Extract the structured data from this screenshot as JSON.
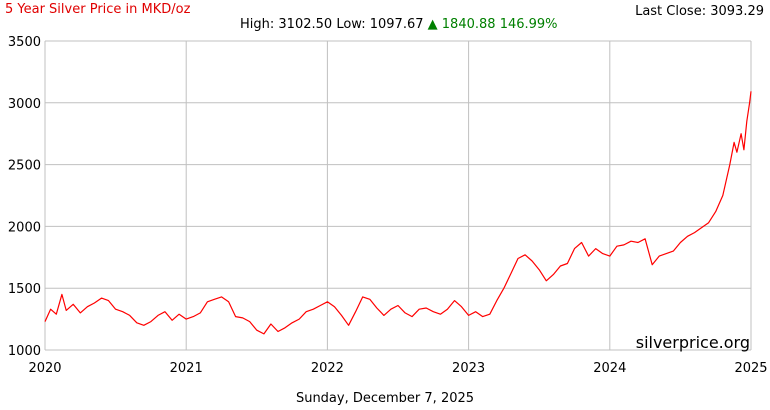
{
  "header": {
    "title": "5 Year Silver Price in MKD/oz",
    "last_close_label": "Last Close:",
    "last_close_value": "3093.29",
    "high_label": "High:",
    "high_value": "3102.50",
    "low_label": "Low:",
    "low_value": "1097.67",
    "change_arrow": "▲",
    "change_value": "1840.88",
    "change_percent": "146.99%"
  },
  "footer": {
    "date": "Sunday, December 7, 2025"
  },
  "watermark": "silverprice.org",
  "colors": {
    "title": "#e00000",
    "line": "#ff0000",
    "change_up": "#008000",
    "grid": "#c0c0c0"
  },
  "chart_data": {
    "type": "line",
    "title": "5 Year Silver Price in MKD/oz",
    "xlabel": "",
    "ylabel": "",
    "xlim": [
      2020.0,
      2025.0
    ],
    "ylim": [
      1000,
      3500
    ],
    "x_ticks": [
      2020,
      2021,
      2022,
      2023,
      2024,
      2025
    ],
    "x_tick_labels": [
      "2020",
      "2021",
      "2022",
      "2023",
      "2024",
      "2025"
    ],
    "y_ticks": [
      1000,
      1500,
      2000,
      2500,
      3000,
      3500
    ],
    "y_tick_labels": [
      "1000",
      "1500",
      "2000",
      "2500",
      "3000",
      "3500"
    ],
    "grid": true,
    "legend": "none",
    "series": [
      {
        "color": "#ff0000",
        "x": [
          2020.0,
          2020.04,
          2020.08,
          2020.12,
          2020.15,
          2020.2,
          2020.25,
          2020.3,
          2020.35,
          2020.4,
          2020.45,
          2020.5,
          2020.55,
          2020.6,
          2020.65,
          2020.7,
          2020.75,
          2020.8,
          2020.85,
          2020.9,
          2020.95,
          2021.0,
          2021.05,
          2021.1,
          2021.15,
          2021.2,
          2021.25,
          2021.3,
          2021.35,
          2021.4,
          2021.45,
          2021.5,
          2021.55,
          2021.6,
          2021.65,
          2021.7,
          2021.75,
          2021.8,
          2021.85,
          2021.9,
          2021.95,
          2022.0,
          2022.05,
          2022.1,
          2022.15,
          2022.2,
          2022.25,
          2022.3,
          2022.35,
          2022.4,
          2022.45,
          2022.5,
          2022.55,
          2022.6,
          2022.65,
          2022.7,
          2022.75,
          2022.8,
          2022.85,
          2022.9,
          2022.95,
          2023.0,
          2023.05,
          2023.1,
          2023.15,
          2023.2,
          2023.25,
          2023.3,
          2023.35,
          2023.4,
          2023.45,
          2023.5,
          2023.55,
          2023.6,
          2023.65,
          2023.7,
          2023.75,
          2023.8,
          2023.85,
          2023.9,
          2023.95,
          2024.0,
          2024.05,
          2024.1,
          2024.15,
          2024.2,
          2024.25,
          2024.3,
          2024.35,
          2024.4,
          2024.45,
          2024.5,
          2024.55,
          2024.6,
          2024.65,
          2024.7,
          2024.75,
          2024.8,
          2024.85,
          2024.88,
          2024.9,
          2024.93,
          2024.95,
          2024.97,
          2024.99,
          2025.0
        ],
        "values": [
          1230,
          1330,
          1290,
          1450,
          1320,
          1370,
          1300,
          1350,
          1380,
          1420,
          1400,
          1330,
          1310,
          1280,
          1220,
          1200,
          1230,
          1280,
          1310,
          1240,
          1290,
          1250,
          1270,
          1300,
          1390,
          1410,
          1430,
          1390,
          1270,
          1260,
          1230,
          1160,
          1130,
          1210,
          1150,
          1180,
          1220,
          1250,
          1310,
          1330,
          1360,
          1390,
          1350,
          1280,
          1200,
          1310,
          1430,
          1410,
          1340,
          1280,
          1330,
          1360,
          1300,
          1270,
          1330,
          1340,
          1310,
          1290,
          1330,
          1400,
          1350,
          1280,
          1310,
          1270,
          1290,
          1400,
          1500,
          1620,
          1740,
          1770,
          1720,
          1650,
          1560,
          1610,
          1680,
          1700,
          1820,
          1870,
          1760,
          1820,
          1780,
          1760,
          1840,
          1850,
          1880,
          1870,
          1900,
          1690,
          1760,
          1780,
          1800,
          1870,
          1920,
          1950,
          1990,
          2030,
          2120,
          2250,
          2500,
          2680,
          2600,
          2750,
          2620,
          2850,
          3000,
          3093
        ]
      }
    ]
  }
}
